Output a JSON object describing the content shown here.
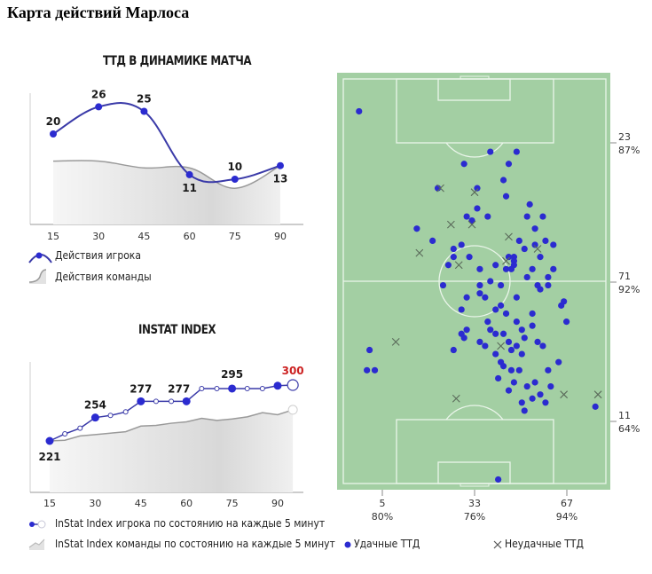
{
  "page": {
    "title": "Карта действий Марлоса"
  },
  "colors": {
    "player": "#2b2bd0",
    "player_line": "#3a3aa8",
    "team_line": "#9a9a9a",
    "team_fill": "#e2e2e2",
    "highlight": "#cc2222",
    "pitch": "#a3cfa3",
    "pitch_lines": "#eaf5ea"
  },
  "chart_data": [
    {
      "type": "line",
      "title": "ТТД В ДИНАМИКЕ МАТЧА",
      "x": [
        15,
        30,
        45,
        60,
        75,
        90
      ],
      "xticks": [
        "15",
        "30",
        "45",
        "60",
        "75",
        "90"
      ],
      "series": [
        {
          "name": "Действия игрока",
          "values": [
            20,
            26,
            25,
            11,
            10,
            13
          ],
          "labels": [
            "20",
            "26",
            "25",
            "11",
            "10",
            "13"
          ]
        },
        {
          "name": "Действия команды",
          "values": [
            14,
            14,
            12.5,
            12.5,
            8,
            13
          ]
        }
      ],
      "ylim": [
        0,
        30
      ],
      "legend": [
        "Действия игрока",
        "Действия команды"
      ]
    },
    {
      "type": "line",
      "title": "INSTAT INDEX",
      "x": [
        15,
        20,
        25,
        30,
        35,
        40,
        45,
        50,
        55,
        60,
        65,
        70,
        75,
        80,
        85,
        90,
        95
      ],
      "xticks": [
        "15",
        "30",
        "45",
        "60",
        "75",
        "90"
      ],
      "xtick_values": [
        15,
        30,
        45,
        60,
        75,
        90
      ],
      "series": [
        {
          "name": "InStat Index игрока по состоянию на каждые 5 минут",
          "values": [
            221,
            231,
            239,
            254,
            257,
            262,
            277,
            277,
            277,
            277,
            295,
            295,
            295,
            295,
            295,
            299,
            300
          ],
          "labels": {
            "0": "221",
            "3": "254",
            "6": "277",
            "9": "277",
            "12": "295",
            "16": "300"
          }
        },
        {
          "name": "InStat Index команды по состоянию на каждые 5 минут",
          "values": [
            221,
            222,
            228,
            230,
            232,
            234,
            242,
            243,
            246,
            248,
            253,
            250,
            252,
            255,
            261,
            258,
            265
          ]
        }
      ],
      "ylim": [
        170,
        310
      ],
      "legend": [
        "InStat Index игрока по состоянию на каждые 5 минут",
        "InStat Index команды по состоянию на каждые 5 минут"
      ]
    },
    {
      "type": "scatter",
      "title": "Карта действий",
      "xlim": [
        0,
        100
      ],
      "ylim": [
        0,
        100
      ],
      "successful_label": "Удачные ТТД",
      "unsuccessful_label": "Неудачные ТТД",
      "successful": [
        [
          6,
          92
        ],
        [
          46,
          79
        ],
        [
          56,
          82
        ],
        [
          51,
          73
        ],
        [
          63,
          79
        ],
        [
          66,
          82
        ],
        [
          61,
          75
        ],
        [
          49,
          65
        ],
        [
          51,
          68
        ],
        [
          62,
          71
        ],
        [
          55,
          66
        ],
        [
          71,
          69
        ],
        [
          76,
          66
        ],
        [
          70,
          66
        ],
        [
          73,
          63
        ],
        [
          77,
          60
        ],
        [
          73,
          59
        ],
        [
          75,
          56
        ],
        [
          80,
          59
        ],
        [
          67,
          60
        ],
        [
          65,
          56
        ],
        [
          69,
          58
        ],
        [
          63,
          56
        ],
        [
          72,
          53
        ],
        [
          74,
          49
        ],
        [
          80,
          53
        ],
        [
          78,
          51
        ],
        [
          58,
          54
        ],
        [
          62,
          53
        ],
        [
          56,
          50
        ],
        [
          64,
          53
        ],
        [
          65,
          55
        ],
        [
          60,
          49
        ],
        [
          45,
          59
        ],
        [
          65,
          54
        ],
        [
          40,
          54
        ],
        [
          42,
          58
        ],
        [
          48,
          56
        ],
        [
          52,
          53
        ],
        [
          52,
          49
        ],
        [
          54,
          46
        ],
        [
          60,
          44
        ],
        [
          66,
          46
        ],
        [
          70,
          51
        ],
        [
          75,
          48
        ],
        [
          78,
          49
        ],
        [
          84,
          45
        ],
        [
          47,
          46
        ],
        [
          52,
          47
        ],
        [
          58,
          43
        ],
        [
          66,
          40
        ],
        [
          72,
          42
        ],
        [
          83,
          44
        ],
        [
          68,
          38
        ],
        [
          72,
          39
        ],
        [
          55,
          40
        ],
        [
          56,
          38
        ],
        [
          62,
          42
        ],
        [
          45,
          43
        ],
        [
          38,
          49
        ],
        [
          45,
          37
        ],
        [
          47,
          38
        ],
        [
          46,
          36
        ],
        [
          52,
          35
        ],
        [
          54,
          34
        ],
        [
          58,
          37
        ],
        [
          61,
          37
        ],
        [
          63,
          35
        ],
        [
          66,
          34
        ],
        [
          69,
          36
        ],
        [
          74,
          35
        ],
        [
          76,
          34
        ],
        [
          85,
          40
        ],
        [
          58,
          32
        ],
        [
          64,
          33
        ],
        [
          68,
          32
        ],
        [
          82,
          30
        ],
        [
          78,
          28
        ],
        [
          79,
          24
        ],
        [
          75,
          22
        ],
        [
          60,
          30
        ],
        [
          61,
          29
        ],
        [
          64,
          28
        ],
        [
          59,
          26
        ],
        [
          67,
          28
        ],
        [
          65,
          25
        ],
        [
          63,
          23
        ],
        [
          70,
          24
        ],
        [
          73,
          25
        ],
        [
          72,
          21
        ],
        [
          68,
          20
        ],
        [
          77,
          20
        ],
        [
          69,
          18
        ],
        [
          10,
          33
        ],
        [
          42,
          33
        ],
        [
          9,
          28
        ],
        [
          12,
          28
        ],
        [
          59,
          1
        ],
        [
          96,
          19
        ],
        [
          36,
          73
        ],
        [
          34,
          60
        ],
        [
          28,
          63
        ],
        [
          42,
          56
        ],
        [
          47,
          66
        ]
      ],
      "unsuccessful": [
        [
          37,
          73
        ],
        [
          50,
          72
        ],
        [
          41,
          64
        ],
        [
          49,
          64
        ],
        [
          29,
          57
        ],
        [
          74,
          58
        ],
        [
          62,
          55
        ],
        [
          60,
          34
        ],
        [
          20,
          35
        ],
        [
          44,
          54
        ],
        [
          43,
          21
        ],
        [
          84,
          22
        ],
        [
          97,
          22
        ],
        [
          63,
          61
        ]
      ],
      "x_marks": [
        {
          "value": "5",
          "pct": "80%"
        },
        {
          "value": "33",
          "pct": "76%"
        },
        {
          "value": "67",
          "pct": "94%"
        }
      ],
      "y_marks": [
        {
          "value": "23",
          "pct": "87%"
        },
        {
          "value": "71",
          "pct": "92%"
        },
        {
          "value": "11",
          "pct": "64%"
        }
      ]
    }
  ]
}
